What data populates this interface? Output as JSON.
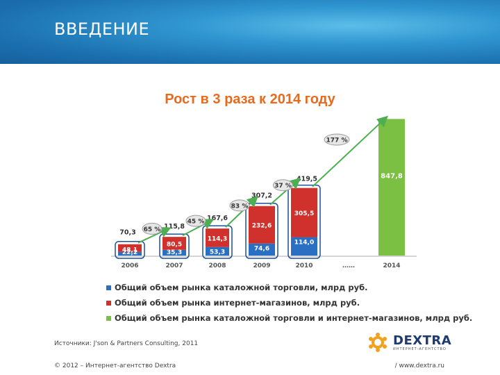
{
  "slide": {
    "title": "ВВЕДЕНИЕ",
    "subtitle": "Рост в 3 раза к 2014 году",
    "source": "Источники: J'son & Partners Consulting, 2011",
    "footer_left": "© 2012 – Интернет-агентство Dextra",
    "footer_right": "/ www.dextra.ru",
    "logo_text": "DEXTRA",
    "logo_tagline": "ИНТЕРНЕТ-АГЕНТСТВО"
  },
  "colors": {
    "catalog": "#2a6fc2",
    "internet": "#d0312d",
    "combined": "#7bc043",
    "arrow": "#4caf50",
    "title": "#e86a1d"
  },
  "chart_data": {
    "type": "bar",
    "categories": [
      "2006",
      "2007",
      "2008",
      "2009",
      "2010",
      "……",
      "2014"
    ],
    "series": [
      {
        "name": "Общий объем рынка каталожной торговли, млрд руб.",
        "values": [
          22.2,
          35.3,
          53.3,
          74.6,
          114.0,
          null,
          null
        ],
        "labels": [
          "22,2",
          "35,3",
          "53,3",
          "74,6",
          "114,0",
          "",
          ""
        ]
      },
      {
        "name": "Общий объем рынка интернет-магазинов, млрд руб.",
        "values": [
          48.1,
          80.5,
          114.3,
          232.6,
          305.5,
          null,
          null
        ],
        "labels": [
          "48,1",
          "80,5",
          "114,3",
          "232,6",
          "305,5",
          "",
          ""
        ]
      },
      {
        "name": "Общий объем рынка каталожной торговли и интернет-магазинов, млрд руб.",
        "values": [
          null,
          null,
          null,
          null,
          null,
          null,
          847.8
        ],
        "labels": [
          "",
          "",
          "",
          "",
          "",
          "",
          "847,8"
        ]
      }
    ],
    "totals": [
      70.3,
      115.8,
      167.6,
      307.2,
      419.5,
      null,
      847.8
    ],
    "total_labels": [
      "70,3",
      "115,8",
      "167,6",
      "307,2",
      "419,5",
      "",
      "847,8"
    ],
    "growth_labels": [
      "65 %",
      "45 %",
      "83 %",
      "37 %",
      "177 %"
    ],
    "stacked": true,
    "legend_position": "bottom",
    "grid": false
  }
}
